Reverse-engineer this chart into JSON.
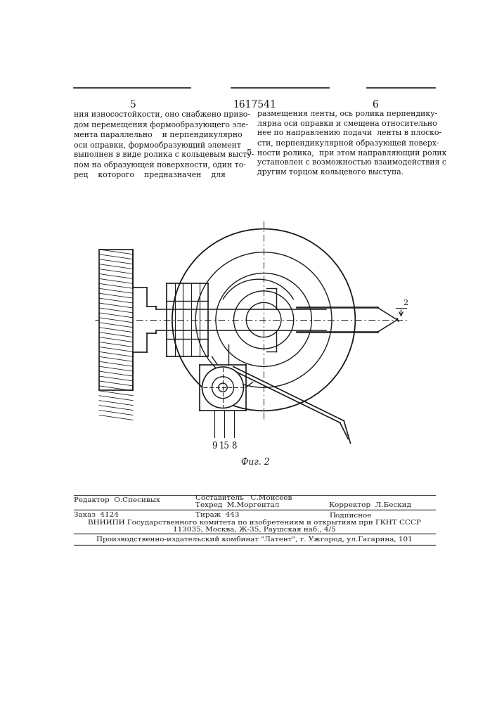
{
  "bg_color": "#ffffff",
  "page_color": "#ffffff",
  "title_number": "1617541",
  "page_left": "5",
  "page_right": "6",
  "text_left": "ния износостойкости, оно снабжено приво-\nдом перемещения формообразующего эле-\nмента параллельно    и перпендикулярно\nоси оправки, формообразующий элемент\nвыполнен в виде ролика с кольцевым высту-\nпом на образующей поверхности, один то-\nрец    которого    предназначен    для",
  "text_right": "размещения ленты, ось ролика перпендику-\nлярна оси оправки и смещена относительно\nнее по направлению подачи  ленты в плоско-\nсти, перпендикулярной образующей поверх-\nности ролика,  при этом направляющий ролик\nустановлен с возможностью взаимодействия с\nдругим торцом кольцевого выступа.",
  "line_number": "5",
  "fig_label": "Фиг. 2",
  "editor_label": "Редактор",
  "editor_name": "О.Спесивых",
  "composer_label": "Составитель",
  "composer_name": "С.Моисеев",
  "techred_label": "Техред",
  "techred_name": "М.Моргентал",
  "corrector_label": "Корректор",
  "corrector_name": "Л.Бескид",
  "order_label": "Заказ",
  "order_num": "4124",
  "tirazh_label": "Тираж",
  "tirazh_num": "443",
  "podpisnoe": "Подписное",
  "institute_line1": "ВНИИПИ Государственного комитета по изобретениям и открытиям при ГКНТ СССР",
  "institute_line2": "113035, Москва, Ж-35, Раушская наб., 4/5",
  "publisher_line": "Производственно-издательский комбинат \"Латент\", г. Ужгород, ул.Гагарина, 101",
  "line_color": "#1a1a1a"
}
